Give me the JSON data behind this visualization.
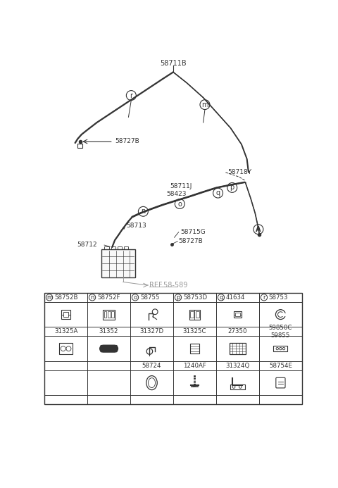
{
  "bg_color": "#ffffff",
  "line_color": "#333333",
  "text_color": "#333333",
  "col_letters": [
    "m",
    "n",
    "o",
    "p",
    "q",
    "r"
  ],
  "col_parts": [
    "58752B",
    "58752F",
    "58755",
    "58753D",
    "41634",
    "58753"
  ],
  "row1_parts": [
    "31325A",
    "31352",
    "31327D",
    "31325C",
    "27350",
    "59850C\n59855"
  ],
  "row3_parts": [
    "",
    "",
    "58724",
    "1240AF",
    "31324Q",
    "58754E"
  ]
}
